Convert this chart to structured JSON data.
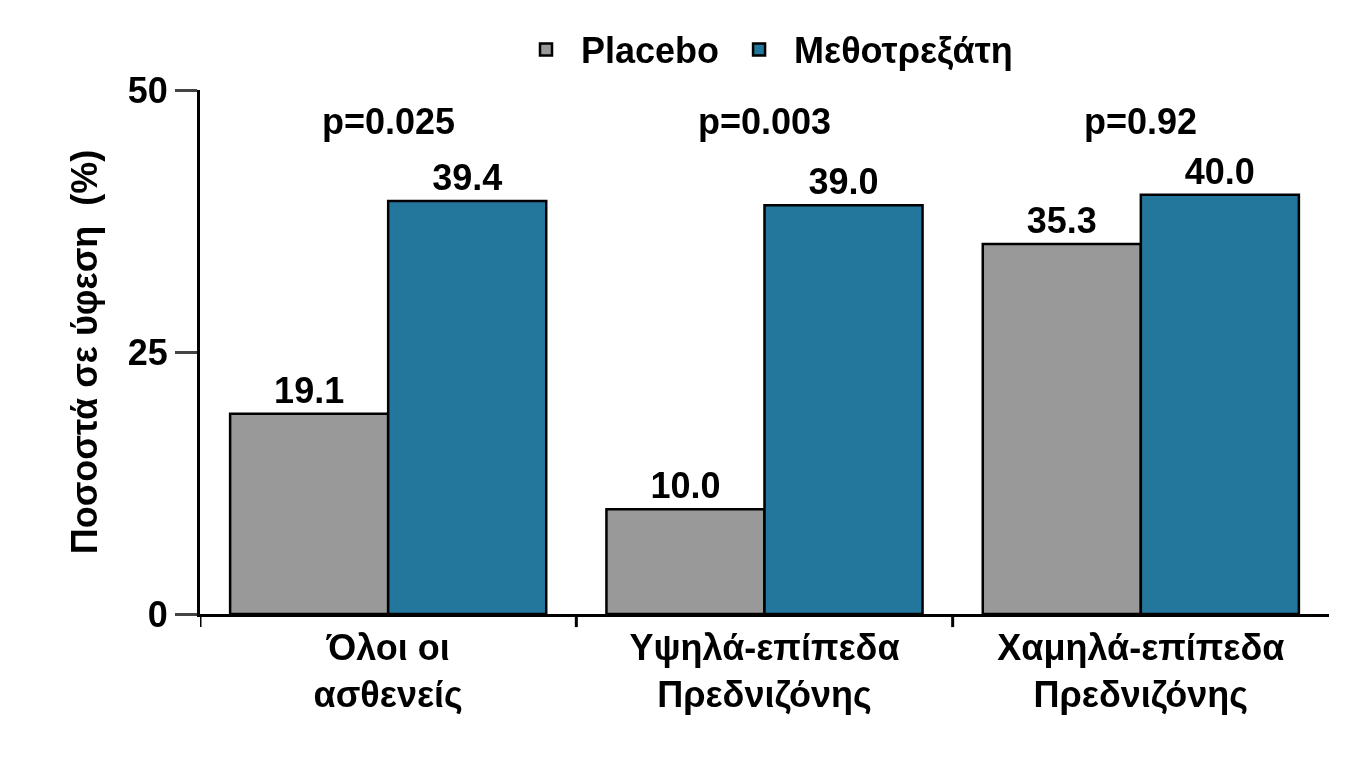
{
  "chart_data": {
    "type": "bar",
    "ylabel": "Ποσοστά σε ύφεση  (%)",
    "categories": [
      "Όλοι οι ασθενείς",
      "Υψηλά-επίπεδα Πρεδνιζόνης",
      "Χαμηλά-επίπεδα Πρεδνιζόνης"
    ],
    "series": [
      {
        "name": "Placebo",
        "color": "#999999",
        "values": [
          19.1,
          10.0,
          35.3
        ],
        "value_labels": [
          "19.1",
          "10.0",
          "35.3"
        ]
      },
      {
        "name": "Μεθοτρεξάτη",
        "color": "#23779c",
        "values": [
          39.4,
          39.0,
          40.0
        ],
        "value_labels": [
          "39.4",
          "39.0",
          "40.0"
        ]
      }
    ],
    "ylim": [
      0,
      50
    ],
    "yticks": [
      0,
      25,
      50
    ],
    "grid": false,
    "legend": "top",
    "annotations": [
      "p=0.025",
      "p=0.003",
      "p=0.92"
    ]
  }
}
